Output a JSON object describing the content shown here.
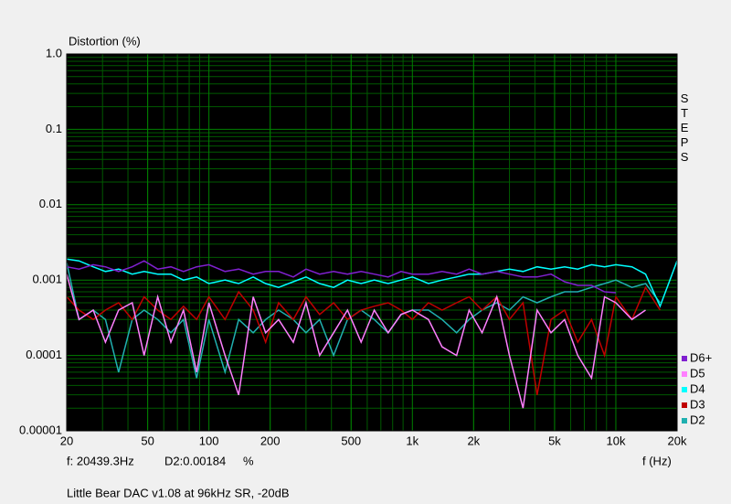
{
  "chart_data": {
    "type": "line",
    "y_label": "Distortion (%)",
    "x_label": "f (Hz)",
    "side_label": "STEPS",
    "cursor": {
      "frequency": "f: 20439.3Hz",
      "reading": "D2:0.00184",
      "unit": "%"
    },
    "footnote": "Little Bear DAC v1.08 at 96kHz SR, -20dB",
    "log_x": true,
    "log_y": true,
    "grid": true,
    "minor_grid": true,
    "legend": "bottom-right",
    "xlim": [
      20,
      20000
    ],
    "ylim": [
      1e-05,
      1
    ],
    "xticks": [
      20,
      50,
      100,
      200,
      500,
      {
        "value": 1000,
        "label": "1k"
      },
      {
        "value": 2000,
        "label": "2k"
      },
      {
        "value": 5000,
        "label": "5k"
      },
      {
        "value": 10000,
        "label": "10k"
      },
      {
        "value": 20000,
        "label": "20k"
      }
    ],
    "yticks": [
      1e-05,
      0.0001,
      0.001,
      0.01,
      0.1,
      {
        "value": 1,
        "label": "1.0"
      }
    ],
    "x": [
      20,
      23,
      27,
      31,
      36,
      42,
      48,
      56,
      65,
      75,
      87,
      100,
      120,
      140,
      165,
      190,
      220,
      260,
      300,
      350,
      410,
      480,
      560,
      650,
      760,
      880,
      1000,
      1200,
      1400,
      1650,
      1900,
      2200,
      2600,
      3000,
      3500,
      4100,
      4800,
      5600,
      6500,
      7600,
      8800,
      10000,
      12000,
      14000,
      16500,
      20000
    ],
    "series": [
      {
        "name": "D6+",
        "color": "#8020d0",
        "values": [
          0.0015,
          0.0014,
          0.0016,
          0.0015,
          0.0013,
          0.0015,
          0.0018,
          0.0014,
          0.0015,
          0.0013,
          0.0015,
          0.0016,
          0.0013,
          0.0014,
          0.0012,
          0.0013,
          0.0013,
          0.0011,
          0.0014,
          0.0012,
          0.0013,
          0.0012,
          0.0013,
          0.0012,
          0.0011,
          0.0013,
          0.0012,
          0.0012,
          0.0013,
          0.0012,
          0.0014,
          0.0012,
          0.0013,
          0.0012,
          0.0011,
          0.0011,
          0.0012,
          0.00095,
          0.00085,
          0.00085,
          0.0007,
          0.00068,
          null,
          null,
          null,
          null
        ]
      },
      {
        "name": "D5",
        "color": "#ff80ff",
        "values": [
          0.0012,
          0.0003,
          0.0004,
          0.00015,
          0.0004,
          0.0005,
          0.0001,
          0.0006,
          0.00015,
          0.0004,
          6e-05,
          0.0005,
          0.0001,
          3e-05,
          0.0006,
          0.0002,
          0.0003,
          0.00015,
          0.0005,
          0.0001,
          0.0002,
          0.0004,
          0.00015,
          0.0004,
          0.0002,
          0.00035,
          0.0004,
          0.0003,
          0.00013,
          0.0001,
          0.0004,
          0.0002,
          0.0006,
          0.0001,
          2e-05,
          0.0004,
          0.0002,
          0.0003,
          0.0001,
          5e-05,
          0.0006,
          0.0005,
          0.0003,
          0.0004,
          null,
          null
        ]
      },
      {
        "name": "D4",
        "color": "#00ffff",
        "values": [
          0.0019,
          0.0018,
          0.0015,
          0.0013,
          0.0014,
          0.0012,
          0.0013,
          0.0012,
          0.0012,
          0.001,
          0.0011,
          0.0009,
          0.001,
          0.0009,
          0.0011,
          0.0009,
          0.0008,
          0.00095,
          0.0011,
          0.0009,
          0.0008,
          0.001,
          0.0009,
          0.001,
          0.0009,
          0.001,
          0.0011,
          0.0009,
          0.001,
          0.0011,
          0.0012,
          0.0012,
          0.0013,
          0.0014,
          0.0013,
          0.0015,
          0.0014,
          0.0015,
          0.0014,
          0.0016,
          0.0015,
          0.0016,
          0.0015,
          0.0012,
          0.00045,
          0.0018
        ]
      },
      {
        "name": "D3",
        "color": "#c00000",
        "values": [
          0.0006,
          0.0004,
          0.0003,
          0.0004,
          0.0005,
          0.0003,
          0.0006,
          0.0004,
          0.0003,
          0.00045,
          0.0003,
          0.0006,
          0.0003,
          0.0007,
          0.0004,
          0.00015,
          0.0005,
          0.0003,
          0.0006,
          0.00035,
          0.0005,
          0.0003,
          0.0004,
          0.00045,
          0.0005,
          0.0004,
          0.0003,
          0.0005,
          0.0004,
          0.0005,
          0.0006,
          0.0004,
          0.0006,
          0.0003,
          0.0005,
          3e-05,
          0.0003,
          0.0004,
          0.00015,
          0.0003,
          0.0001,
          0.0006,
          0.0003,
          0.0008,
          0.0004,
          null
        ]
      },
      {
        "name": "D2",
        "color": "#20b0b0",
        "values": [
          0.0017,
          0.0003,
          0.0004,
          0.0003,
          6e-05,
          0.0003,
          0.0004,
          0.0003,
          0.0002,
          0.0003,
          5e-05,
          0.0003,
          6e-05,
          0.0003,
          0.0002,
          0.0003,
          0.0004,
          0.0003,
          0.0002,
          0.0003,
          0.0001,
          0.0003,
          0.0004,
          0.0003,
          0.0002,
          0.00035,
          0.0004,
          0.0004,
          0.0003,
          0.0002,
          0.0003,
          0.0004,
          0.0005,
          0.0004,
          0.0006,
          0.0005,
          0.0006,
          0.0007,
          0.0007,
          0.0008,
          0.0009,
          0.001,
          0.0008,
          0.0009,
          0.0005,
          null
        ]
      }
    ]
  }
}
